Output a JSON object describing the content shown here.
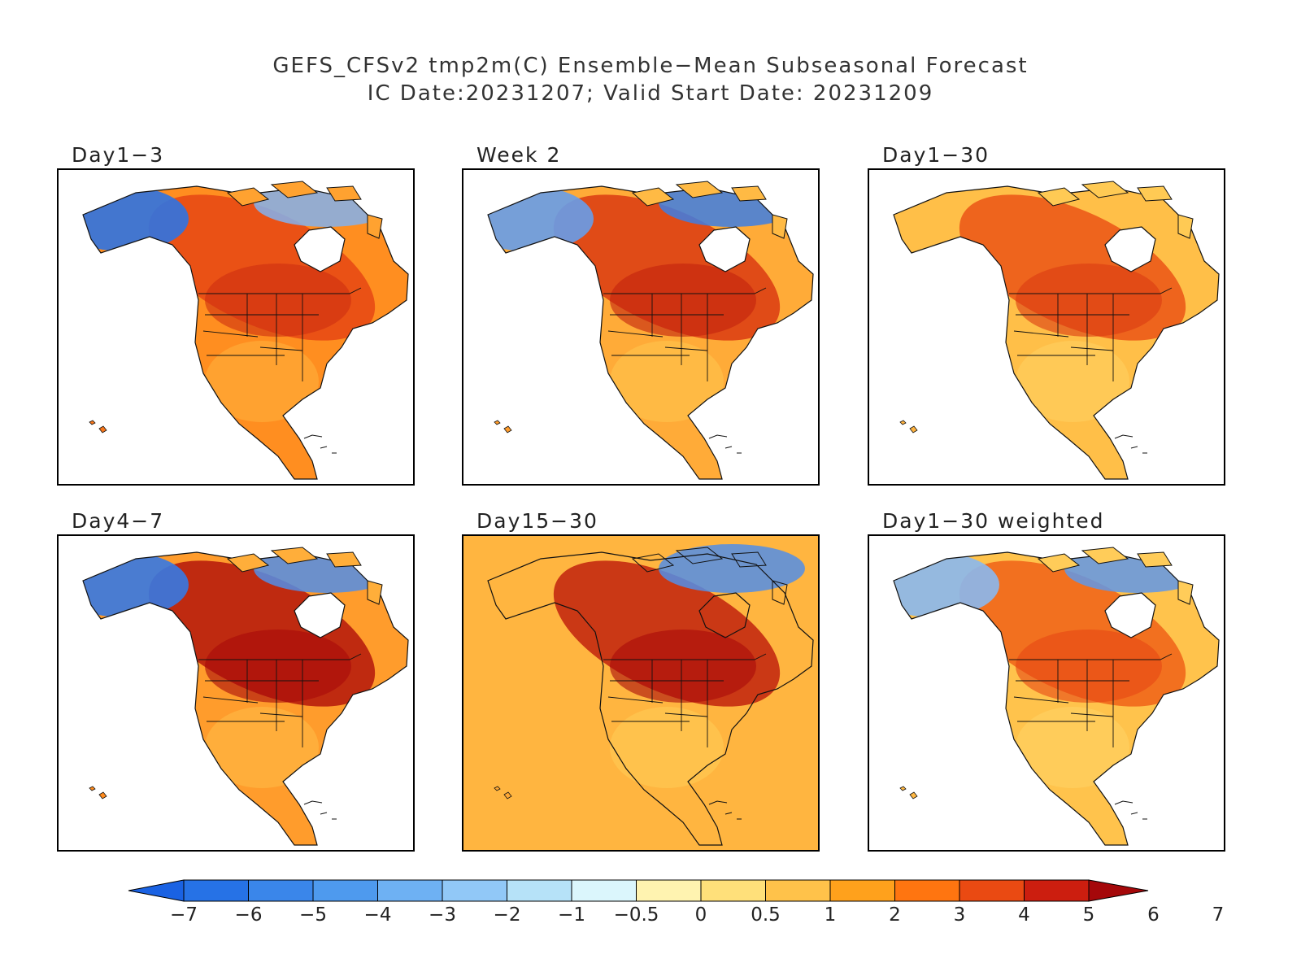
{
  "figure": {
    "title_line1": "GEFS_CFSv2 tmp2m(C) Ensemble−Mean Subseasonal Forecast",
    "title_line2": "IC Date:20231207; Valid Start Date: 20231209"
  },
  "panels": [
    {
      "label": "Day1−3",
      "wp": 0.82,
      "cool_nw": 0.95,
      "cool_ne": 0.35,
      "core": 0.75
    },
    {
      "label": "Week 2",
      "wp": 0.62,
      "cool_nw": 0.55,
      "cool_ne": 0.85,
      "core": 0.8
    },
    {
      "label": "Day1−30",
      "wp": 0.48,
      "cool_nw": 0.0,
      "cool_ne": 0.0,
      "core": 0.7
    },
    {
      "label": "Day4−7",
      "wp": 0.72,
      "cool_nw": 0.9,
      "cool_ne": 0.7,
      "core": 0.95
    },
    {
      "label": "Day15−30",
      "wp": 0.55,
      "cool_nw": 0.0,
      "cool_ne": 0.7,
      "core": 0.9
    },
    {
      "label": "Day1−30 weighted",
      "wp": 0.45,
      "cool_nw": 0.3,
      "cool_ne": 0.6,
      "core": 0.65
    }
  ],
  "colorbar": {
    "colors": [
      "#1a62e3",
      "#2672e6",
      "#3a86ea",
      "#4e9aee",
      "#6eb1f3",
      "#91c8f7",
      "#b6e2f8",
      "#dbf6fc",
      "#fff3b0",
      "#ffe07a",
      "#ffc24a",
      "#ffa11c",
      "#ff7510",
      "#ea4a12",
      "#cc1e0f",
      "#a5080a"
    ],
    "ticks": [
      "−7",
      "−6",
      "−5",
      "−4",
      "−3",
      "−2",
      "−1",
      "−0.5",
      "0",
      "0.5",
      "1",
      "2",
      "3",
      "4",
      "5",
      "6",
      "7"
    ]
  }
}
